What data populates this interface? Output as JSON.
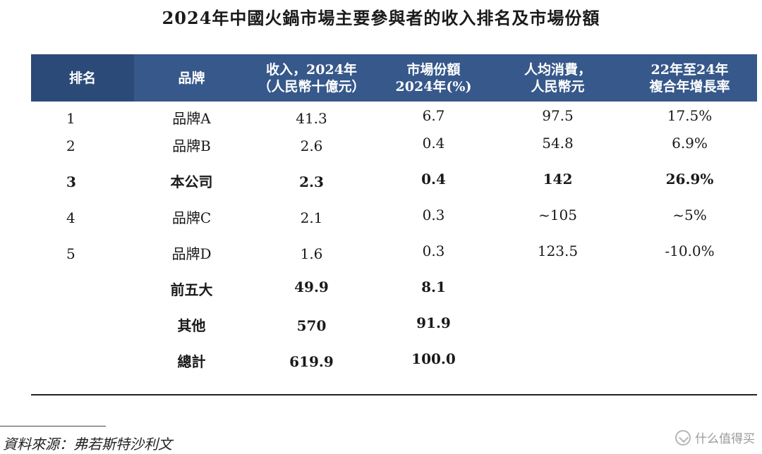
{
  "title": "2024年中國火鍋市場主要參與者的收入排名及市場份額",
  "colors": {
    "header_dark": "#2c4a78",
    "header_light": "#36588a",
    "header_text": "#ffffff"
  },
  "table": {
    "headers": [
      {
        "line1": "排名",
        "line2": ""
      },
      {
        "line1": "品牌",
        "line2": ""
      },
      {
        "line1": "收入，2024年",
        "line2": "（人民幣十億元）"
      },
      {
        "line1": "市場份額",
        "line2": "2024年(%)"
      },
      {
        "line1": "人均消費，",
        "line2": "人民幣元"
      },
      {
        "line1": "22年至24年",
        "line2": "複合年增長率"
      }
    ],
    "rows": [
      {
        "rank": "1",
        "brand": "品牌A",
        "revenue": "41.3",
        "share": "6.7",
        "per_capita": "97.5",
        "cagr": "17.5%",
        "bold": false
      },
      {
        "rank": "2",
        "brand": "品牌B",
        "revenue": "2.6",
        "share": "0.4",
        "per_capita": "54.8",
        "cagr": "6.9%",
        "bold": false
      },
      {
        "rank": "3",
        "brand": "本公司",
        "revenue": "2.3",
        "share": "0.4",
        "per_capita": "142",
        "cagr": "26.9%",
        "bold": true
      },
      {
        "rank": "4",
        "brand": "品牌C",
        "revenue": "2.1",
        "share": "0.3",
        "per_capita": "~105",
        "cagr": "~5%",
        "bold": false
      },
      {
        "rank": "5",
        "brand": "品牌D",
        "revenue": "1.6",
        "share": "0.3",
        "per_capita": "123.5",
        "cagr": "-10.0%",
        "bold": false
      },
      {
        "rank": "",
        "brand": "前五大",
        "revenue": "49.9",
        "share": "8.1",
        "per_capita": "",
        "cagr": "",
        "bold": true
      },
      {
        "rank": "",
        "brand": "其他",
        "revenue": "570",
        "share": "91.9",
        "per_capita": "",
        "cagr": "",
        "bold": true
      },
      {
        "rank": "",
        "brand": "總計",
        "revenue": "619.9",
        "share": "100.0",
        "per_capita": "",
        "cagr": "",
        "bold": true
      }
    ]
  },
  "source": "資料來源：弗若斯特沙利文",
  "watermark": {
    "icon": "zhide-logo-icon",
    "text": "什么值得买"
  }
}
